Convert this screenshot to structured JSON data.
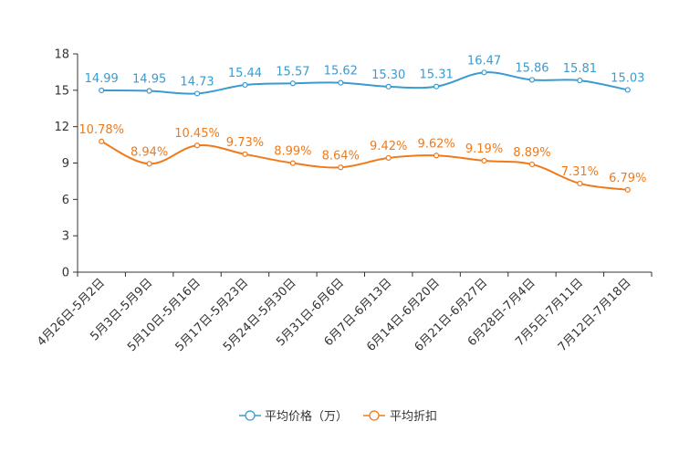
{
  "chart_data": {
    "type": "line",
    "categories": [
      "4月26日-5月2日",
      "5月3日-5月9日",
      "5月10日-5月16日",
      "5月17日-5月23日",
      "5月24日-5月30日",
      "5月31日-6月6日",
      "6月7日-6月13日",
      "6月14日-6月20日",
      "6月21日-6月27日",
      "6月28日-7月4日",
      "7月5日-7月11日",
      "7月12日-7月18日"
    ],
    "ylim": [
      0,
      18
    ],
    "yticks": [
      0,
      3,
      6,
      9,
      12,
      15,
      18
    ],
    "series": [
      {
        "name": "平均价格（万）",
        "color": "#3b9bd1",
        "values": [
          14.99,
          14.95,
          14.73,
          15.44,
          15.57,
          15.62,
          15.3,
          15.31,
          16.47,
          15.86,
          15.81,
          15.03
        ],
        "labels": [
          "14.99",
          "14.95",
          "14.73",
          "15.44",
          "15.57",
          "15.62",
          "15.30",
          "15.31",
          "16.47",
          "15.86",
          "15.81",
          "15.03"
        ]
      },
      {
        "name": "平均折扣",
        "color": "#f07a1a",
        "values": [
          10.78,
          8.94,
          10.45,
          9.73,
          8.99,
          8.64,
          9.42,
          9.62,
          9.19,
          8.89,
          7.31,
          6.79
        ],
        "labels": [
          "10.78%",
          "8.94%",
          "10.45%",
          "9.73%",
          "8.99%",
          "8.64%",
          "9.42%",
          "9.62%",
          "9.19%",
          "8.89%",
          "7.31%",
          "6.79%"
        ]
      }
    ],
    "legend": "bottom-center"
  }
}
